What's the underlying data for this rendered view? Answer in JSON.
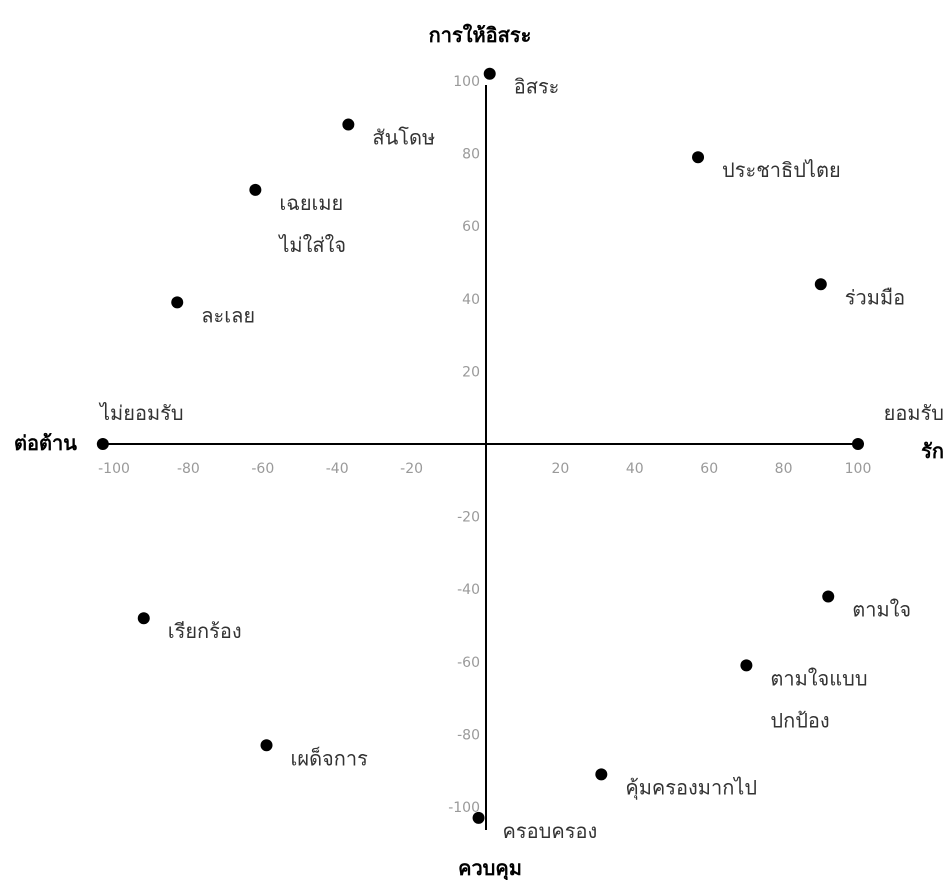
{
  "chart_data": {
    "type": "scatter",
    "title": "การให้อิสระ",
    "bottom_title": "ควบคุม",
    "left_title": "ต่อต้าน",
    "right_title": "รัก",
    "left_sub": "ไม่ยอมรับ",
    "right_sub": "ยอมรับ",
    "xlim": [
      -100,
      100
    ],
    "ylim": [
      -100,
      100
    ],
    "x_ticks": [
      -100,
      -80,
      -60,
      -40,
      -20,
      20,
      40,
      60,
      80,
      100
    ],
    "y_ticks": [
      100,
      80,
      60,
      40,
      20,
      -20,
      -40,
      -60,
      -80,
      -100
    ],
    "grid": false,
    "points": [
      {
        "label": "อิสระ",
        "x": 1,
        "y": 102
      },
      {
        "label": "สันโดษ",
        "x": -37,
        "y": 88
      },
      {
        "label": "ประชาธิปไตย",
        "x": 57,
        "y": 79
      },
      {
        "label": "เฉยเมย",
        "label2": "ไม่ใส่ใจ",
        "x": -62,
        "y": 70
      },
      {
        "label": "ร่วมมือ",
        "x": 90,
        "y": 44
      },
      {
        "label": "ละเลย",
        "x": -83,
        "y": 39
      },
      {
        "label": "",
        "x": -103,
        "y": 0
      },
      {
        "label": "",
        "x": 100,
        "y": 0
      },
      {
        "label": "ตามใจ",
        "x": 92,
        "y": -42
      },
      {
        "label": "เรียกร้อง",
        "x": -92,
        "y": -48
      },
      {
        "label": "ตามใจแบบ",
        "label2": "ปกป้อง",
        "x": 70,
        "y": -61
      },
      {
        "label": "เผด็จการ",
        "x": -59,
        "y": -83
      },
      {
        "label": "คุ้มครองมากไป",
        "x": 31,
        "y": -91
      },
      {
        "label": "ครอบครอง",
        "x": -2,
        "y": -103
      }
    ]
  }
}
